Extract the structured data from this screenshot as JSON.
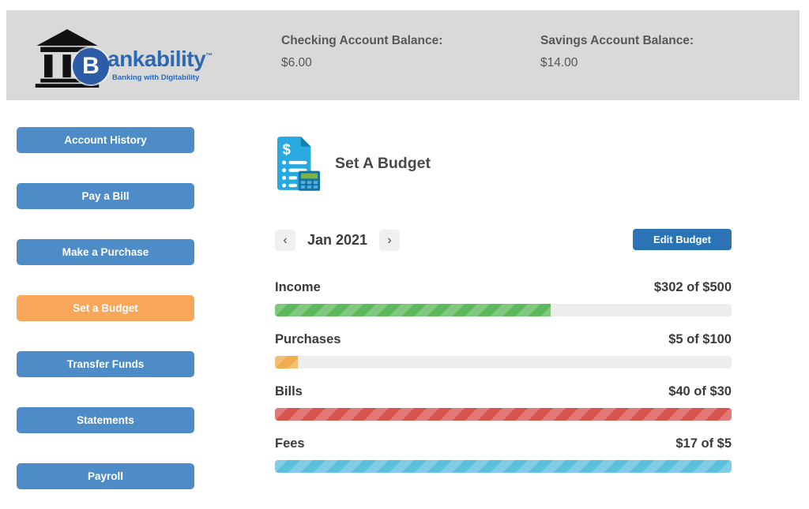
{
  "header": {
    "logo": {
      "coin_letter": "B",
      "brand_rest": "ankability",
      "trademark": "™",
      "tagline": "Banking with Digitability"
    },
    "checking": {
      "label": "Checking Account Balance:",
      "value": "$6.00"
    },
    "savings": {
      "label": "Savings Account Balance:",
      "value": "$14.00"
    }
  },
  "sidebar": {
    "items": [
      {
        "label": "Account History",
        "active": false
      },
      {
        "label": "Pay a Bill",
        "active": false
      },
      {
        "label": "Make a Purchase",
        "active": false
      },
      {
        "label": "Set a Budget",
        "active": true
      },
      {
        "label": "Transfer Funds",
        "active": false
      },
      {
        "label": "Statements",
        "active": false
      },
      {
        "label": "Payroll",
        "active": false
      }
    ]
  },
  "main": {
    "title": "Set A Budget",
    "title_icon": "budget-document-calculator-icon",
    "month_nav": {
      "prev_icon": "‹",
      "label": "Jan 2021",
      "next_icon": "›"
    },
    "edit_button_label": "Edit Budget",
    "budgets": [
      {
        "category": "Income",
        "value": "$302 of $500",
        "spent": 302,
        "limit": 500,
        "percent": 60.4,
        "color": "#5cb85c"
      },
      {
        "category": "Purchases",
        "value": "$5 of $100",
        "spent": 5,
        "limit": 100,
        "percent": 5,
        "color": "#f0ad4e"
      },
      {
        "category": "Bills",
        "value": "$40 of $30",
        "spent": 40,
        "limit": 30,
        "percent": 100,
        "color": "#d9534f"
      },
      {
        "category": "Fees",
        "value": "$17 of $5",
        "spent": 17,
        "limit": 5,
        "percent": 100,
        "color": "#5bc0de"
      }
    ]
  },
  "colors": {
    "header_bg": "#d9d9d9",
    "sidebar_button": "#4e8cc7",
    "sidebar_active": "#f7a65a",
    "edit_button": "#2c73b6",
    "bar_track": "#ededed",
    "income_bar": "#5cb85c",
    "purchases_bar": "#f0ad4e",
    "bills_bar": "#d9534f",
    "fees_bar": "#5bc0de",
    "logo_blue": "#2d68b3"
  }
}
